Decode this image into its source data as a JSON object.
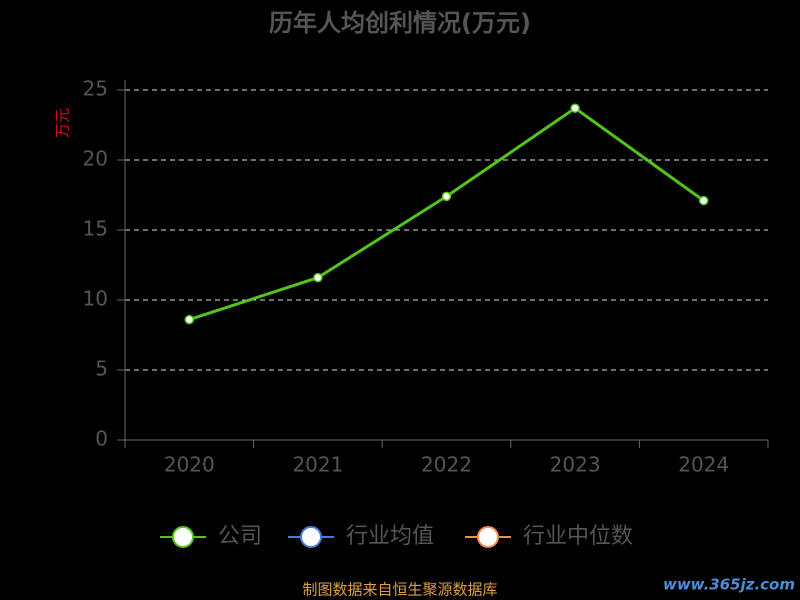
{
  "chart_data": {
    "type": "line",
    "title": "历年人均创利情况(万元)",
    "y_label": "万元",
    "categories": [
      "2020",
      "2021",
      "2022",
      "2023",
      "2024"
    ],
    "series": [
      {
        "name": "公司",
        "color": "#52c41a",
        "values": [
          8.6,
          11.6,
          17.4,
          23.7,
          17.1
        ]
      },
      {
        "name": "行业均值",
        "color": "#4a7bd8",
        "values": [
          null,
          null,
          null,
          null,
          null
        ]
      },
      {
        "name": "行业中位数",
        "color": "#f08c50",
        "values": [
          null,
          null,
          null,
          null,
          null
        ]
      }
    ],
    "ylim": [
      0,
      25
    ],
    "yticks": [
      0,
      5,
      10,
      15,
      20,
      25
    ],
    "grid": true,
    "legend": "bottom",
    "source": "制图数据来自恒生聚源数据库",
    "watermark": "www.365jz.com"
  }
}
